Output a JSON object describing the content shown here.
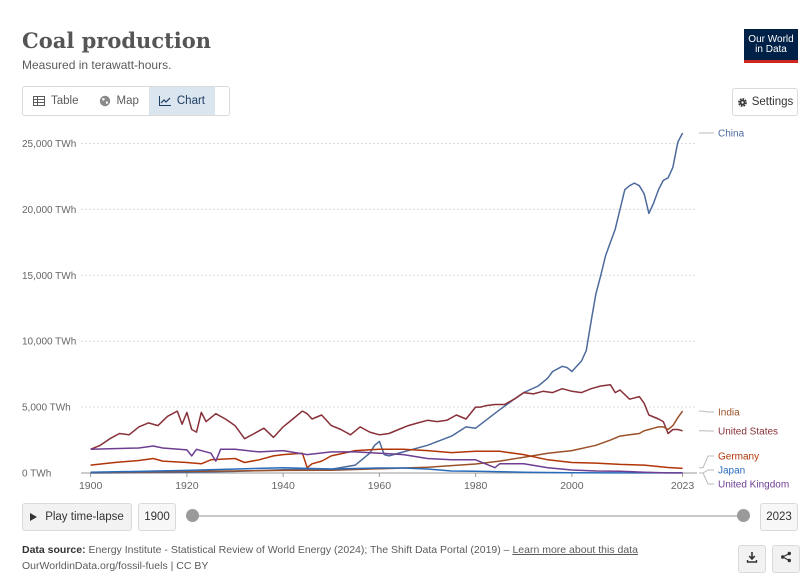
{
  "header": {
    "title": "Coal production",
    "subtitle": "Measured in terawatt-hours.",
    "logo_line1": "Our World",
    "logo_line2": "in Data"
  },
  "tabs": [
    {
      "label": "Table",
      "icon": "table-icon",
      "active": false
    },
    {
      "label": "Map",
      "icon": "globe-icon",
      "active": false
    },
    {
      "label": "Chart",
      "icon": "line-chart-icon",
      "active": true
    }
  ],
  "settings_label": "Settings",
  "timeline": {
    "play_label": "Play time-lapse",
    "start_year": "1900",
    "end_year": "2023"
  },
  "footer": {
    "source_prefix": "Data source:",
    "source_text": "Energy Institute - Statistical Review of World Energy (2024); The Shift Data Portal (2019) –",
    "learn_more": "Learn more about this data",
    "url_line": "OurWorldinData.org/fossil-fuels | CC BY"
  },
  "chart_data": {
    "type": "line",
    "title": "Coal production",
    "subtitle": "Measured in terawatt-hours.",
    "unit": "TWh",
    "xlim": [
      1898,
      2026
    ],
    "ylim": [
      0,
      26000
    ],
    "yticks": [
      0,
      5000,
      10000,
      15000,
      20000,
      25000
    ],
    "ytick_labels": [
      "0 TWh",
      "5,000 TWh",
      "10,000 TWh",
      "15,000 TWh",
      "20,000 TWh",
      "25,000 TWh"
    ],
    "xticks": [
      1900,
      1920,
      1940,
      1960,
      1980,
      2000,
      2023
    ],
    "grid": "horizontal dotted",
    "legend": "line-end labels on right",
    "series": [
      {
        "name": "China",
        "color": "#4c6a9c",
        "label_value": 25800,
        "x": [
          1900,
          1910,
          1920,
          1930,
          1940,
          1945,
          1950,
          1955,
          1958,
          1959,
          1960,
          1961,
          1962,
          1965,
          1970,
          1975,
          1978,
          1980,
          1985,
          1988,
          1990,
          1993,
          1995,
          1996,
          1998,
          1999,
          2000,
          2002,
          2003,
          2004,
          2005,
          2006,
          2007,
          2008,
          2009,
          2010,
          2011,
          2012,
          2013,
          2014,
          2015,
          2016,
          2017,
          2018,
          2019,
          2020,
          2021,
          2022,
          2023
        ],
        "y": [
          0,
          30,
          60,
          120,
          250,
          300,
          280,
          600,
          1500,
          2100,
          2400,
          1400,
          1300,
          1600,
          2100,
          2800,
          3500,
          3400,
          4800,
          5600,
          6100,
          6600,
          7200,
          7700,
          8100,
          8000,
          7700,
          8500,
          9300,
          11500,
          13600,
          15000,
          16500,
          17500,
          18500,
          20000,
          21500,
          21800,
          22000,
          21800,
          21200,
          19700,
          20500,
          21500,
          22200,
          22400,
          23200,
          25100,
          25800
        ]
      },
      {
        "name": "United States",
        "color": "#883039",
        "label_value": 3200,
        "x": [
          1900,
          1902,
          1904,
          1906,
          1908,
          1910,
          1912,
          1914,
          1916,
          1918,
          1919,
          1920,
          1921,
          1922,
          1923,
          1924,
          1926,
          1928,
          1930,
          1932,
          1934,
          1936,
          1938,
          1940,
          1942,
          1944,
          1945,
          1946,
          1948,
          1950,
          1952,
          1954,
          1956,
          1958,
          1960,
          1962,
          1964,
          1966,
          1968,
          1970,
          1972,
          1974,
          1976,
          1978,
          1980,
          1981,
          1982,
          1984,
          1986,
          1988,
          1990,
          1992,
          1994,
          1996,
          1998,
          2000,
          2002,
          2004,
          2006,
          2008,
          2009,
          2010,
          2012,
          2014,
          2015,
          2016,
          2018,
          2019,
          2020,
          2021,
          2022,
          2023
        ],
        "y": [
          1800,
          2100,
          2600,
          3000,
          2900,
          3500,
          3800,
          3600,
          4300,
          4700,
          3700,
          4600,
          3300,
          3100,
          4600,
          3900,
          4500,
          4100,
          3600,
          2600,
          3000,
          3400,
          2700,
          3500,
          4100,
          4700,
          4500,
          4100,
          4400,
          3600,
          3300,
          2900,
          3500,
          3100,
          2900,
          3000,
          3300,
          3600,
          3800,
          4000,
          3900,
          4000,
          4400,
          4100,
          5000,
          5000,
          5100,
          5200,
          5200,
          5600,
          6100,
          6000,
          6200,
          6100,
          6400,
          6200,
          6100,
          6400,
          6600,
          6700,
          6100,
          6300,
          5600,
          5800,
          5300,
          4400,
          4100,
          3900,
          3000,
          3300,
          3300,
          3200
        ]
      },
      {
        "name": "India",
        "color": "#9a5129",
        "label_value": 4700,
        "x": [
          1900,
          1920,
          1940,
          1950,
          1960,
          1970,
          1975,
          1980,
          1985,
          1990,
          1995,
          2000,
          2005,
          2008,
          2010,
          2012,
          2014,
          2015,
          2016,
          2017,
          2018,
          2019,
          2020,
          2021,
          2022,
          2023
        ],
        "y": [
          40,
          120,
          200,
          210,
          320,
          440,
          560,
          680,
          900,
          1200,
          1500,
          1700,
          2100,
          2500,
          2800,
          2900,
          3000,
          3200,
          3300,
          3400,
          3500,
          3500,
          3300,
          3600,
          4200,
          4700
        ]
      },
      {
        "name": "Germany",
        "color": "#b13507",
        "label_value": 400,
        "x": [
          1900,
          1905,
          1910,
          1913,
          1915,
          1920,
          1923,
          1925,
          1930,
          1932,
          1935,
          1938,
          1940,
          1944,
          1945,
          1946,
          1948,
          1950,
          1955,
          1960,
          1965,
          1970,
          1975,
          1980,
          1985,
          1990,
          1995,
          2000,
          2005,
          2010,
          2015,
          2020,
          2023
        ],
        "y": [
          600,
          800,
          950,
          1100,
          900,
          800,
          700,
          1000,
          1100,
          800,
          1000,
          1300,
          1400,
          1500,
          400,
          700,
          900,
          1300,
          1700,
          1800,
          1800,
          1700,
          1550,
          1650,
          1650,
          1400,
          1000,
          800,
          750,
          650,
          600,
          420,
          350
        ]
      },
      {
        "name": "Japan",
        "color": "#286bbb",
        "label_value": 0,
        "x": [
          1900,
          1920,
          1940,
          1950,
          1960,
          1965,
          1970,
          1975,
          1980,
          1990,
          2000,
          2010,
          2023
        ],
        "y": [
          50,
          200,
          400,
          300,
          380,
          380,
          300,
          150,
          130,
          60,
          20,
          5,
          5
        ]
      },
      {
        "name": "United Kingdom",
        "color": "#6d3e91",
        "label_value": 0,
        "x": [
          1900,
          1905,
          1910,
          1913,
          1915,
          1920,
          1921,
          1922,
          1925,
          1926,
          1927,
          1930,
          1935,
          1940,
          1945,
          1950,
          1955,
          1960,
          1965,
          1970,
          1975,
          1980,
          1984,
          1985,
          1990,
          1995,
          2000,
          2005,
          2010,
          2015,
          2020,
          2023
        ],
        "y": [
          1800,
          1850,
          1900,
          2050,
          1900,
          1750,
          1300,
          1800,
          1500,
          900,
          1800,
          1800,
          1600,
          1700,
          1400,
          1600,
          1600,
          1500,
          1400,
          1100,
          1000,
          1000,
          400,
          700,
          700,
          400,
          230,
          150,
          130,
          60,
          10,
          5
        ]
      }
    ]
  }
}
